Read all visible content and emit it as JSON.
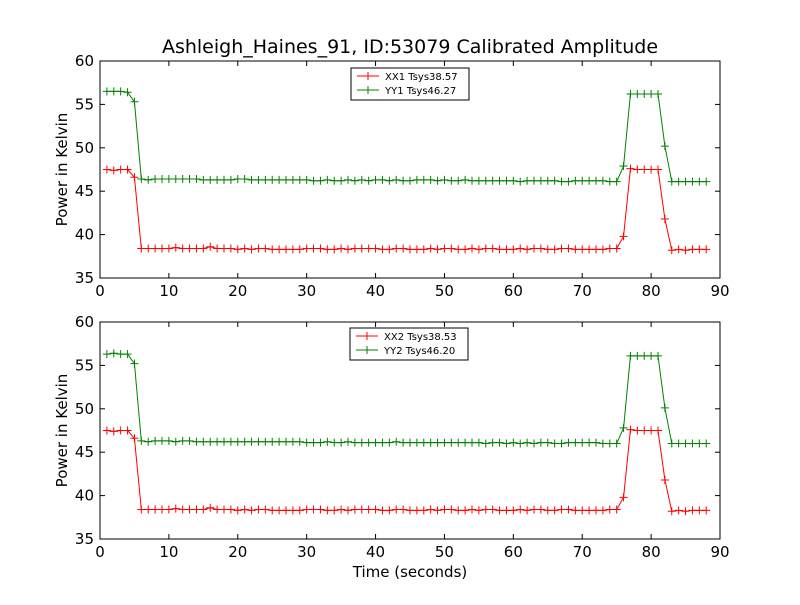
{
  "chart_data": [
    {
      "type": "line",
      "title": "Ashleigh_Haines_91, ID:53079 Calibrated Amplitude",
      "xlabel": "",
      "ylabel": "Power in Kelvin",
      "xlim": [
        0,
        90
      ],
      "ylim": [
        35,
        60
      ],
      "xticks": [
        "0",
        "10",
        "20",
        "30",
        "40",
        "50",
        "60",
        "70",
        "80",
        "90"
      ],
      "yticks": [
        "35",
        "40",
        "45",
        "50",
        "55",
        "60"
      ],
      "grid": false,
      "legend_position": "upper-center",
      "series": [
        {
          "name": "XX1 Tsys38.57",
          "color": "#ff0000",
          "marker": "plus",
          "x": [
            1,
            2,
            3,
            4,
            5,
            6,
            7,
            8,
            9,
            10,
            11,
            12,
            13,
            14,
            15,
            16,
            17,
            18,
            19,
            20,
            21,
            22,
            23,
            24,
            25,
            26,
            27,
            28,
            29,
            30,
            31,
            32,
            33,
            34,
            35,
            36,
            37,
            38,
            39,
            40,
            41,
            42,
            43,
            44,
            45,
            46,
            47,
            48,
            49,
            50,
            51,
            52,
            53,
            54,
            55,
            56,
            57,
            58,
            59,
            60,
            61,
            62,
            63,
            64,
            65,
            66,
            67,
            68,
            69,
            70,
            71,
            72,
            73,
            74,
            75,
            76,
            77,
            78,
            79,
            80,
            81,
            82,
            83,
            84,
            85,
            86,
            87,
            88
          ],
          "values": [
            47.5,
            47.4,
            47.5,
            47.5,
            46.6,
            38.4,
            38.4,
            38.4,
            38.4,
            38.4,
            38.5,
            38.4,
            38.4,
            38.4,
            38.4,
            38.6,
            38.4,
            38.4,
            38.4,
            38.3,
            38.4,
            38.3,
            38.4,
            38.4,
            38.3,
            38.3,
            38.3,
            38.3,
            38.3,
            38.4,
            38.4,
            38.4,
            38.3,
            38.3,
            38.4,
            38.3,
            38.4,
            38.4,
            38.4,
            38.4,
            38.3,
            38.3,
            38.4,
            38.4,
            38.3,
            38.3,
            38.3,
            38.4,
            38.3,
            38.4,
            38.4,
            38.3,
            38.3,
            38.4,
            38.3,
            38.4,
            38.4,
            38.3,
            38.3,
            38.3,
            38.4,
            38.3,
            38.4,
            38.4,
            38.3,
            38.3,
            38.4,
            38.4,
            38.3,
            38.3,
            38.3,
            38.3,
            38.3,
            38.4,
            38.4,
            39.8,
            47.6,
            47.5,
            47.5,
            47.5,
            47.5,
            41.8,
            38.2,
            38.3,
            38.2,
            38.3,
            38.3,
            38.3
          ]
        },
        {
          "name": "YY1 Tsys46.27",
          "color": "#008000",
          "marker": "plus",
          "x": [
            1,
            2,
            3,
            4,
            5,
            6,
            7,
            8,
            9,
            10,
            11,
            12,
            13,
            14,
            15,
            16,
            17,
            18,
            19,
            20,
            21,
            22,
            23,
            24,
            25,
            26,
            27,
            28,
            29,
            30,
            31,
            32,
            33,
            34,
            35,
            36,
            37,
            38,
            39,
            40,
            41,
            42,
            43,
            44,
            45,
            46,
            47,
            48,
            49,
            50,
            51,
            52,
            53,
            54,
            55,
            56,
            57,
            58,
            59,
            60,
            61,
            62,
            63,
            64,
            65,
            66,
            67,
            68,
            69,
            70,
            71,
            72,
            73,
            74,
            75,
            76,
            77,
            78,
            79,
            80,
            81,
            82,
            83,
            84,
            85,
            86,
            87,
            88
          ],
          "values": [
            56.5,
            56.5,
            56.5,
            56.4,
            55.3,
            46.4,
            46.3,
            46.4,
            46.4,
            46.4,
            46.4,
            46.4,
            46.4,
            46.4,
            46.3,
            46.3,
            46.3,
            46.3,
            46.3,
            46.4,
            46.4,
            46.3,
            46.3,
            46.3,
            46.3,
            46.3,
            46.3,
            46.3,
            46.3,
            46.3,
            46.2,
            46.2,
            46.3,
            46.2,
            46.2,
            46.3,
            46.2,
            46.3,
            46.2,
            46.3,
            46.3,
            46.2,
            46.3,
            46.2,
            46.2,
            46.3,
            46.3,
            46.3,
            46.2,
            46.3,
            46.2,
            46.2,
            46.3,
            46.2,
            46.2,
            46.2,
            46.2,
            46.2,
            46.2,
            46.2,
            46.1,
            46.2,
            46.2,
            46.2,
            46.2,
            46.2,
            46.1,
            46.1,
            46.2,
            46.2,
            46.2,
            46.2,
            46.2,
            46.1,
            46.1,
            47.9,
            56.2,
            56.2,
            56.2,
            56.2,
            56.2,
            50.2,
            46.1,
            46.1,
            46.1,
            46.1,
            46.1,
            46.1
          ]
        }
      ]
    },
    {
      "type": "line",
      "title": "",
      "xlabel": "Time (seconds)",
      "ylabel": "Power in Kelvin",
      "xlim": [
        0,
        90
      ],
      "ylim": [
        35,
        60
      ],
      "xticks": [
        "0",
        "10",
        "20",
        "30",
        "40",
        "50",
        "60",
        "70",
        "80",
        "90"
      ],
      "yticks": [
        "35",
        "40",
        "45",
        "50",
        "55",
        "60"
      ],
      "grid": false,
      "legend_position": "upper-center",
      "series": [
        {
          "name": "XX2 Tsys38.53",
          "color": "#ff0000",
          "marker": "plus",
          "x": [
            1,
            2,
            3,
            4,
            5,
            6,
            7,
            8,
            9,
            10,
            11,
            12,
            13,
            14,
            15,
            16,
            17,
            18,
            19,
            20,
            21,
            22,
            23,
            24,
            25,
            26,
            27,
            28,
            29,
            30,
            31,
            32,
            33,
            34,
            35,
            36,
            37,
            38,
            39,
            40,
            41,
            42,
            43,
            44,
            45,
            46,
            47,
            48,
            49,
            50,
            51,
            52,
            53,
            54,
            55,
            56,
            57,
            58,
            59,
            60,
            61,
            62,
            63,
            64,
            65,
            66,
            67,
            68,
            69,
            70,
            71,
            72,
            73,
            74,
            75,
            76,
            77,
            78,
            79,
            80,
            81,
            82,
            83,
            84,
            85,
            86,
            87,
            88
          ],
          "values": [
            47.5,
            47.4,
            47.5,
            47.5,
            46.6,
            38.4,
            38.4,
            38.4,
            38.4,
            38.4,
            38.5,
            38.4,
            38.4,
            38.4,
            38.4,
            38.6,
            38.4,
            38.4,
            38.4,
            38.3,
            38.4,
            38.3,
            38.4,
            38.4,
            38.3,
            38.3,
            38.3,
            38.3,
            38.3,
            38.4,
            38.4,
            38.4,
            38.3,
            38.3,
            38.4,
            38.3,
            38.4,
            38.4,
            38.4,
            38.4,
            38.3,
            38.3,
            38.4,
            38.4,
            38.3,
            38.3,
            38.3,
            38.4,
            38.3,
            38.4,
            38.4,
            38.3,
            38.3,
            38.4,
            38.3,
            38.4,
            38.4,
            38.3,
            38.3,
            38.3,
            38.4,
            38.3,
            38.4,
            38.4,
            38.3,
            38.3,
            38.4,
            38.4,
            38.3,
            38.3,
            38.3,
            38.3,
            38.3,
            38.4,
            38.4,
            39.8,
            47.6,
            47.5,
            47.5,
            47.5,
            47.5,
            41.8,
            38.2,
            38.3,
            38.2,
            38.3,
            38.3,
            38.3
          ]
        },
        {
          "name": "YY2 Tsys46.20",
          "color": "#008000",
          "marker": "plus",
          "x": [
            1,
            2,
            3,
            4,
            5,
            6,
            7,
            8,
            9,
            10,
            11,
            12,
            13,
            14,
            15,
            16,
            17,
            18,
            19,
            20,
            21,
            22,
            23,
            24,
            25,
            26,
            27,
            28,
            29,
            30,
            31,
            32,
            33,
            34,
            35,
            36,
            37,
            38,
            39,
            40,
            41,
            42,
            43,
            44,
            45,
            46,
            47,
            48,
            49,
            50,
            51,
            52,
            53,
            54,
            55,
            56,
            57,
            58,
            59,
            60,
            61,
            62,
            63,
            64,
            65,
            66,
            67,
            68,
            69,
            70,
            71,
            72,
            73,
            74,
            75,
            76,
            77,
            78,
            79,
            80,
            81,
            82,
            83,
            84,
            85,
            86,
            87,
            88
          ],
          "values": [
            56.3,
            56.4,
            56.3,
            56.3,
            55.2,
            46.3,
            46.2,
            46.3,
            46.3,
            46.3,
            46.2,
            46.3,
            46.3,
            46.2,
            46.2,
            46.2,
            46.2,
            46.2,
            46.2,
            46.2,
            46.2,
            46.2,
            46.2,
            46.2,
            46.2,
            46.2,
            46.2,
            46.2,
            46.2,
            46.1,
            46.1,
            46.1,
            46.2,
            46.1,
            46.1,
            46.2,
            46.1,
            46.1,
            46.1,
            46.1,
            46.1,
            46.1,
            46.2,
            46.1,
            46.1,
            46.1,
            46.1,
            46.1,
            46.1,
            46.1,
            46.1,
            46.1,
            46.1,
            46.1,
            46.1,
            46.0,
            46.1,
            46.1,
            46.0,
            46.1,
            46.0,
            46.1,
            46.0,
            46.1,
            46.1,
            46.0,
            46.0,
            46.1,
            46.1,
            46.1,
            46.1,
            46.1,
            46.0,
            46.0,
            46.0,
            47.8,
            56.1,
            56.1,
            56.1,
            56.1,
            56.1,
            50.1,
            46.0,
            46.0,
            46.0,
            46.0,
            46.0,
            46.0
          ]
        }
      ]
    }
  ]
}
